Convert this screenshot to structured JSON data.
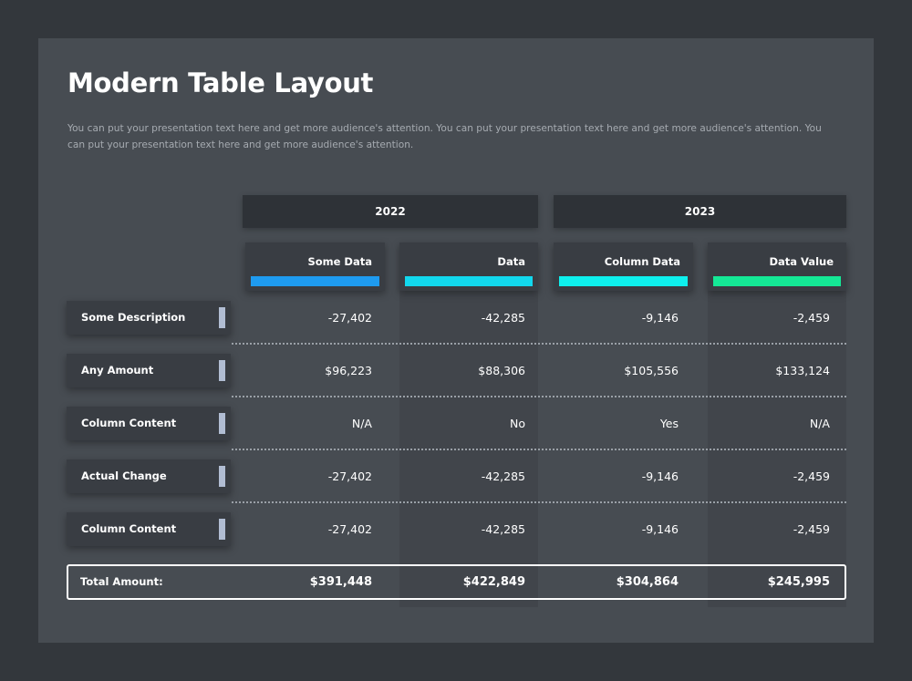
{
  "title": "Modern Table Layout",
  "subtitle": "You can put your presentation text here and get more audience's attention. You can put your presentation text here and get more audience's attention. You can put your presentation text here and get more audience's attention.",
  "years": [
    "2022",
    "2023"
  ],
  "columns": [
    {
      "label": "Some Data",
      "color": "#1e9bf0"
    },
    {
      "label": "Data",
      "color": "#12d8ee"
    },
    {
      "label": "Column Data",
      "color": "#0ef0ee"
    },
    {
      "label": "Data Value",
      "color": "#14e896"
    }
  ],
  "rows": [
    {
      "label": "Some Description",
      "values": [
        "-27,402",
        "-42,285",
        "-9,146",
        "-2,459"
      ]
    },
    {
      "label": "Any Amount",
      "values": [
        "$96,223",
        "$88,306",
        "$105,556",
        "$133,124"
      ]
    },
    {
      "label": "Column Content",
      "values": [
        "N/A",
        "No",
        "Yes",
        "N/A"
      ]
    },
    {
      "label": "Actual Change",
      "values": [
        "-27,402",
        "-42,285",
        "-9,146",
        "-2,459"
      ]
    },
    {
      "label": "Column Content",
      "values": [
        "-27,402",
        "-42,285",
        "-9,146",
        "-2,459"
      ]
    }
  ],
  "total": {
    "label": "Total Amount:",
    "values": [
      "$391,448",
      "$422,849",
      "$304,864",
      "$245,995"
    ]
  },
  "colors": {
    "background": "#33373c",
    "panel": "#474c52",
    "row_tab": "#b1bdd3"
  }
}
